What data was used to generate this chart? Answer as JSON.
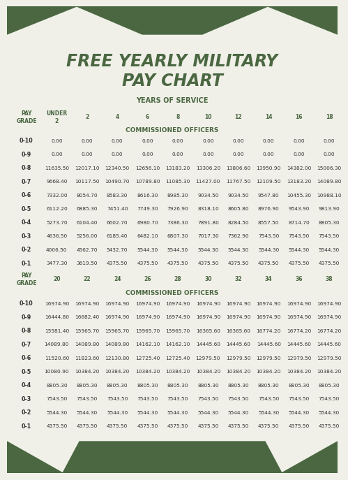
{
  "title_line1": "FREE YEARLY MILITARY",
  "title_line2": "PAY CHART",
  "bg_color": "#f0f0e8",
  "dark_green": "#4a6741",
  "text_color": "#333333",
  "table1_years_label": "YEARS OF SERVICE",
  "table1_section_label": "COMMISSIONED OFFICERS",
  "table1_col_headers": [
    "PAY\nGRADE",
    "UNDER\n2",
    "2",
    "4",
    "6",
    "8",
    "10",
    "12",
    "14",
    "16",
    "18"
  ],
  "table1_rows": [
    [
      "0-10",
      "0.00",
      "0.00",
      "0.00",
      "0.00",
      "0.00",
      "0.00",
      "0.00",
      "0.00",
      "0.00",
      "0.00"
    ],
    [
      "0-9",
      "0.00",
      "0.00",
      "0.00",
      "0.00",
      "0.00",
      "0.00",
      "0.00",
      "0.00",
      "0.00",
      "0.00"
    ],
    [
      "0-8",
      "11635.50",
      "12017.10",
      "12340.50",
      "12656.10",
      "13183.20",
      "13306.20",
      "13806.60",
      "13950.90",
      "14382.00",
      "15006.30"
    ],
    [
      "0-7",
      "9668.40",
      "10117.50",
      "10490.70",
      "10789.80",
      "11085.30",
      "11427.00",
      "11767.50",
      "12109.50",
      "13183.20",
      "14089.80"
    ],
    [
      "0-6",
      "7332.00",
      "8054.70",
      "8583.30",
      "8616.30",
      "8985.30",
      "9034.50",
      "9034.50",
      "9547.80",
      "10455.30",
      "10988.10"
    ],
    [
      "0-5",
      "6112.20",
      "6885.30",
      "7451.40",
      "7749.30",
      "7926.90",
      "8318.10",
      "8605.80",
      "8976.90",
      "9543.90",
      "9813.90"
    ],
    [
      "0-4",
      "5273.70",
      "6104.40",
      "6602.70",
      "6980.70",
      "7386.30",
      "7891.80",
      "8284.50",
      "8557.50",
      "8714.70",
      "8805.30"
    ],
    [
      "0-3",
      "4636.50",
      "5256.00",
      "6185.40",
      "6482.10",
      "6807.30",
      "7017.30",
      "7362.90",
      "7543.50",
      "7543.50",
      "7543.50"
    ],
    [
      "0-2",
      "4006.50",
      "4562.70",
      "5432.70",
      "5544.30",
      "5544.30",
      "5544.30",
      "5544.30",
      "5544.30",
      "5544.30",
      "5544.30"
    ],
    [
      "0-1",
      "3477.30",
      "3619.50",
      "4375.50",
      "4375.50",
      "4375.50",
      "4375.50",
      "4375.50",
      "4375.50",
      "4375.50",
      "4375.50"
    ]
  ],
  "table2_col_headers": [
    "PAY\nGRADE",
    "20",
    "22",
    "24",
    "26",
    "28",
    "30",
    "32",
    "34",
    "36",
    "38"
  ],
  "table2_section_label": "COMMISSIONED OFFICERS",
  "table2_rows": [
    [
      "0-10",
      "16974.90",
      "16974.90",
      "16974.90",
      "16974.90",
      "16974.90",
      "16974.90",
      "16974.90",
      "16974.90",
      "16974.90",
      "16974.90"
    ],
    [
      "0-9",
      "16444.80",
      "16682.40",
      "16974.90",
      "16974.90",
      "16974.90",
      "16974.90",
      "16974.90",
      "16974.90",
      "16974.90",
      "16974.90"
    ],
    [
      "0-8",
      "15581.40",
      "15965.70",
      "15965.70",
      "15965.70",
      "15965.70",
      "16365.60",
      "16365.60",
      "16774.20",
      "16774.20",
      "16774.20"
    ],
    [
      "0-7",
      "14089.80",
      "14089.80",
      "14089.80",
      "14162.10",
      "14162.10",
      "14445.60",
      "14445.60",
      "14445.60",
      "14445.60",
      "14445.60"
    ],
    [
      "0-6",
      "11520.60",
      "11823.60",
      "12130.80",
      "12725.40",
      "12725.40",
      "12979.50",
      "12979.50",
      "12979.50",
      "12979.50",
      "12979.50"
    ],
    [
      "0-5",
      "10080.90",
      "10384.20",
      "10384.20",
      "10384.20",
      "10384.20",
      "10384.20",
      "10384.20",
      "10384.20",
      "10384.20",
      "10384.20"
    ],
    [
      "0-4",
      "8805.30",
      "8805.30",
      "8805.30",
      "8805.30",
      "8805.30",
      "8805.30",
      "8805.30",
      "8805.30",
      "8805.30",
      "8805.30"
    ],
    [
      "0-3",
      "7543.50",
      "7543.50",
      "7543.50",
      "7543.50",
      "7543.50",
      "7543.50",
      "7543.50",
      "7543.50",
      "7543.50",
      "7543.50"
    ],
    [
      "0-2",
      "5544.30",
      "5544.30",
      "5544.30",
      "5544.30",
      "5544.30",
      "5544.30",
      "5544.30",
      "5544.30",
      "5544.30",
      "5544.30"
    ],
    [
      "0-1",
      "4375.50",
      "4375.50",
      "4375.50",
      "4375.50",
      "4375.50",
      "4375.50",
      "4375.50",
      "4375.50",
      "4375.50",
      "4375.50"
    ]
  ]
}
